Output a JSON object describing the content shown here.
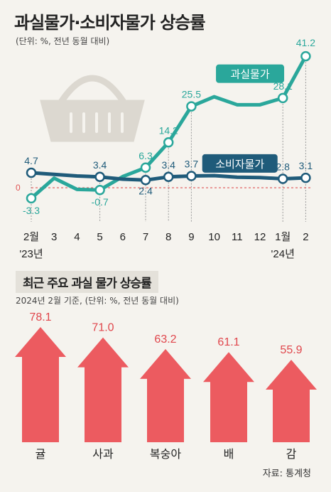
{
  "header": {
    "title": "과실물가·소비자물가 상승률",
    "unit": "(단위: %, 전년 동월 대비)"
  },
  "section2": {
    "title": "최근 주요 과실 물가 상승률",
    "unit": "2024년 2월 기준, (단위: %, 전년 동월 대비)"
  },
  "source": "자료: 통계청",
  "colors": {
    "fruit": "#2aa79b",
    "cpi": "#1f5b7a",
    "arrow": "#ec5b60",
    "zero_line": "#e05555"
  },
  "icon": "shopping-basket-icon",
  "chart_data": [
    {
      "type": "line",
      "x": [
        "2월",
        "3",
        "4",
        "5",
        "6",
        "7",
        "8",
        "9",
        "10",
        "11",
        "12",
        "1월",
        "2"
      ],
      "x_year_labels": [
        {
          "at": "2월",
          "label": "'23년"
        },
        {
          "at": "1월",
          "label": "'24년"
        }
      ],
      "series": [
        {
          "name": "과실물가",
          "values": [
            -3.3,
            3.0,
            -0.5,
            -0.7,
            3.5,
            6.3,
            14.2,
            25.5,
            28.5,
            26.0,
            26.0,
            28.1,
            41.2
          ],
          "labeled": [
            0,
            3,
            5,
            6,
            7,
            11,
            12
          ]
        },
        {
          "name": "소비자물가",
          "values": [
            4.7,
            4.2,
            3.7,
            3.4,
            2.7,
            2.4,
            3.4,
            3.7,
            3.8,
            3.3,
            3.2,
            2.8,
            3.1
          ],
          "labeled": [
            0,
            3,
            5,
            6,
            7,
            11,
            12
          ]
        }
      ],
      "data_labels": {
        "과실물가": [
          "-3.3",
          "",
          "",
          "-0.7",
          "",
          "6.3",
          "14.2",
          "25.5",
          "",
          "",
          "",
          "28.1",
          "41.2"
        ],
        "소비자물가": [
          "4.7",
          "",
          "",
          "3.4",
          "",
          "2.4",
          "3.4",
          "3.7",
          "",
          "",
          "",
          "2.8",
          "3.1"
        ]
      },
      "zero_label": "0",
      "ylim": [
        -8,
        45
      ]
    },
    {
      "type": "bar",
      "categories": [
        "귤",
        "사과",
        "복숭아",
        "배",
        "감"
      ],
      "values": [
        78.1,
        71.0,
        63.2,
        61.1,
        55.9
      ],
      "value_labels": [
        "78.1",
        "71.0",
        "63.2",
        "61.1",
        "55.9"
      ],
      "ylim": [
        0,
        80
      ]
    }
  ]
}
